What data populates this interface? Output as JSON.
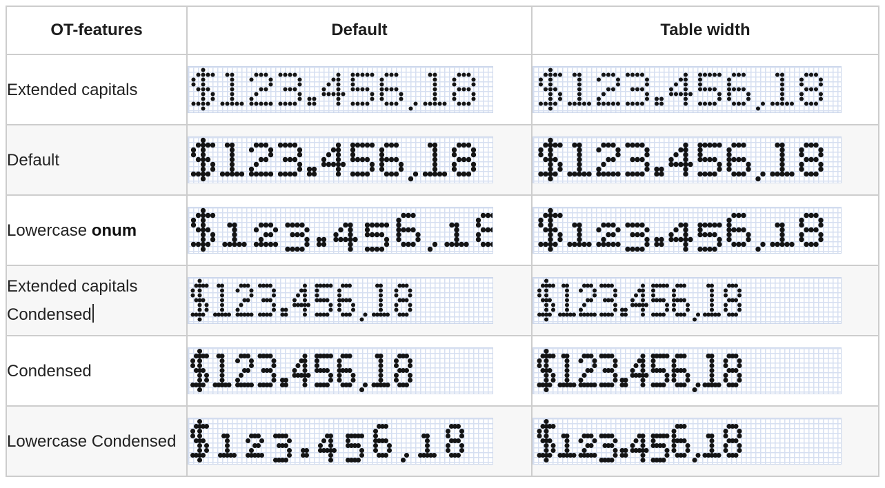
{
  "page": {
    "background": "#ffffff"
  },
  "colors": {
    "dot": "#141414",
    "grid_line": "#d6dff1",
    "band_border": "#ccd7eb",
    "row_alt_bg": "#f7f7f7",
    "cell_border": "#cdcdcd",
    "table_border": "#b9b9b9",
    "text": "#222222"
  },
  "table": {
    "headers": [
      {
        "label": "OT-features"
      },
      {
        "label": "Default"
      },
      {
        "label": "Table width"
      }
    ],
    "sample_text": "$123.456,18",
    "rows": [
      {
        "label_segments": [
          {
            "text": "Extended capitals",
            "bold": false
          }
        ],
        "caret": false,
        "features": {
          "numerals": "lining",
          "condensed": false,
          "extended": true
        }
      },
      {
        "label_segments": [
          {
            "text": "Default",
            "bold": false
          }
        ],
        "caret": false,
        "features": {
          "numerals": "lining",
          "condensed": false,
          "extended": false
        }
      },
      {
        "label_segments": [
          {
            "text": "Lowercase ",
            "bold": false
          },
          {
            "text": "onum",
            "bold": true
          }
        ],
        "caret": false,
        "features": {
          "numerals": "oldstyle",
          "condensed": false,
          "extended": false
        }
      },
      {
        "label_segments": [
          {
            "text": "Extended capitals Condensed",
            "bold": false
          }
        ],
        "caret": true,
        "features": {
          "numerals": "lining",
          "condensed": true,
          "extended": true
        }
      },
      {
        "label_segments": [
          {
            "text": "Condensed",
            "bold": false
          }
        ],
        "caret": false,
        "features": {
          "numerals": "lining",
          "condensed": true,
          "extended": false
        }
      },
      {
        "label_segments": [
          {
            "text": "Lowercase Condensed",
            "bold": false
          }
        ],
        "caret": false,
        "features": {
          "numerals": "oldstyle",
          "condensed": true,
          "extended": false
        }
      }
    ],
    "sample_columns": [
      {
        "key": "default",
        "band_width": 441
      },
      {
        "key": "table_width",
        "band_width": 446
      }
    ]
  }
}
